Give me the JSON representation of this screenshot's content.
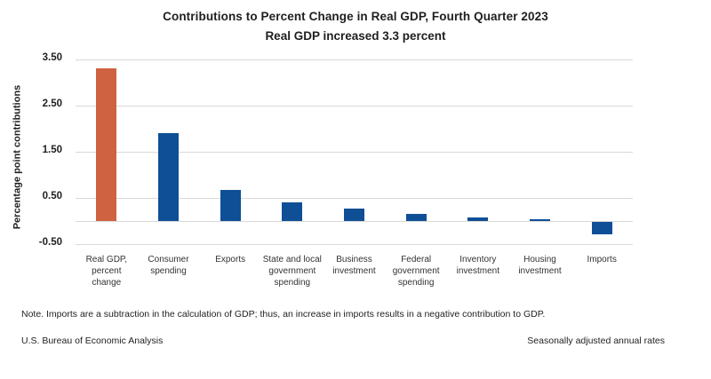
{
  "chart_data": {
    "type": "bar",
    "title": "Contributions to Percent Change in Real GDP, Fourth Quarter 2023",
    "subtitle": "Real GDP increased 3.3 percent",
    "ylabel": "Percentage point contributions",
    "xlabel": "",
    "categories": [
      "Real GDP,\npercent\nchange",
      "Consumer\nspending",
      "Exports",
      "State and local\ngovernment\nspending",
      "Business\ninvestment",
      "Federal\ngovernment\nspending",
      "Inventory\ninvestment",
      "Housing\ninvestment",
      "Imports"
    ],
    "values": [
      3.3,
      1.9,
      0.68,
      0.4,
      0.26,
      0.16,
      0.07,
      0.04,
      -0.27
    ],
    "bar_colors": [
      "#cf6240",
      "#0f4f96",
      "#0f4f96",
      "#0f4f96",
      "#0f4f96",
      "#0f4f96",
      "#0f4f96",
      "#0f4f96",
      "#0f4f96"
    ],
    "ylim": [
      -0.5,
      3.5
    ],
    "baseline": 0,
    "ytick_values": [
      3.5,
      2.5,
      1.5,
      0.5,
      -0.5
    ],
    "ytick_labels": [
      "3.50",
      "2.50",
      "1.50",
      "0.50",
      "-0.50"
    ],
    "grid": "horizontal",
    "legend": "none"
  },
  "footer": {
    "note": "Note. Imports are a subtraction in the calculation of GDP; thus, an increase in imports results in a negative contribution to GDP.",
    "source": "U.S. Bureau of Economic Analysis",
    "rates": "Seasonally adjusted annual rates"
  },
  "colors": {
    "highlight_bar": "#cf6240",
    "default_bar": "#0f4f96",
    "gridline": "#d9d9d9",
    "text": "#1f1f1f"
  }
}
